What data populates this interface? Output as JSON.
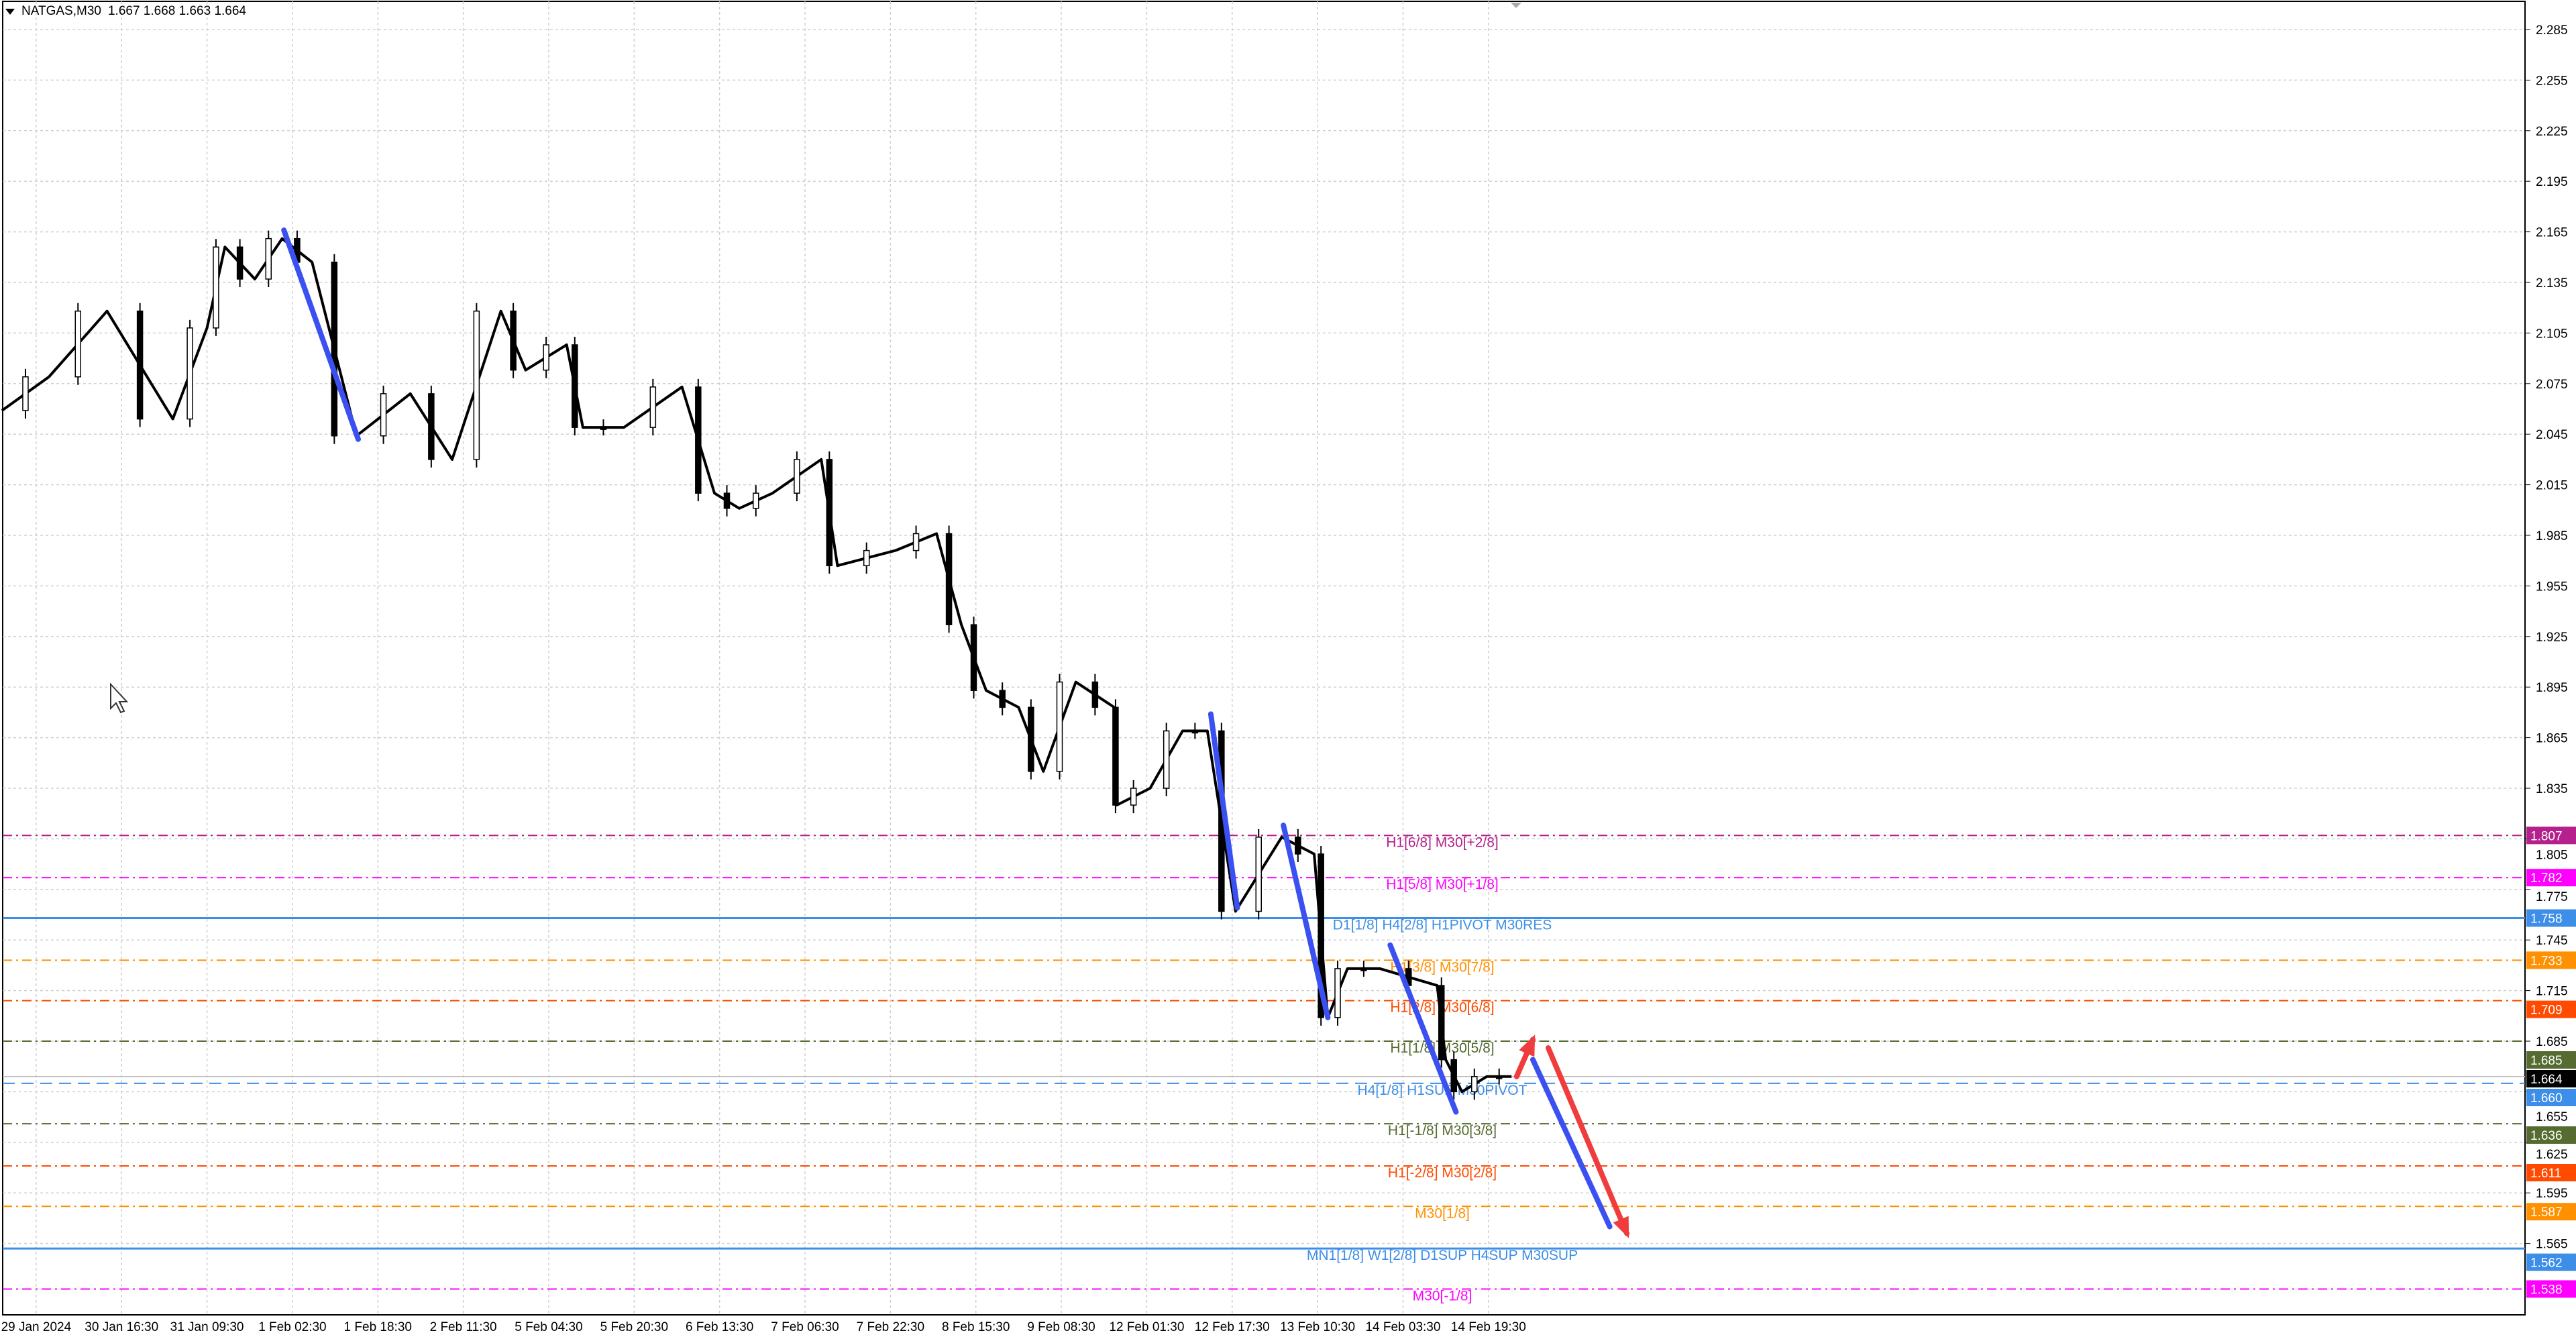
{
  "header": {
    "symbol": "NATGAS,M30",
    "ohlc": "1.667 1.668 1.663 1.664"
  },
  "chart_data": {
    "type": "candlestick",
    "price_ticks": [
      "2.285",
      "2.255",
      "2.225",
      "2.195",
      "2.165",
      "2.135",
      "2.105",
      "2.075",
      "2.045",
      "2.015",
      "1.985",
      "1.955",
      "1.925",
      "1.895",
      "1.865",
      "1.835",
      "1.805",
      "1.775",
      "1.745",
      "1.715",
      "1.685",
      "1.655",
      "1.625",
      "1.595",
      "1.565"
    ],
    "time_labels": [
      "29 Jan 2024",
      "30 Jan 16:30",
      "31 Jan 09:30",
      "1 Feb 02:30",
      "1 Feb 18:30",
      "2 Feb 11:30",
      "5 Feb 04:30",
      "5 Feb 20:30",
      "6 Feb 13:30",
      "7 Feb 06:30",
      "7 Feb 22:30",
      "8 Feb 15:30",
      "9 Feb 08:30",
      "12 Feb 01:30",
      "12 Feb 17:30",
      "13 Feb 10:30",
      "14 Feb 03:30",
      "14 Feb 19:30"
    ],
    "current_price": {
      "value": "1.664",
      "color": "#000000"
    },
    "price_path": [
      [
        -0.4,
        2.059
      ],
      [
        0.15,
        2.079
      ],
      [
        0.83,
        2.118
      ],
      [
        1.6,
        2.054
      ],
      [
        2.0,
        2.108
      ],
      [
        2.21,
        2.156
      ],
      [
        2.56,
        2.137
      ],
      [
        2.88,
        2.161
      ],
      [
        3.23,
        2.147
      ],
      [
        3.75,
        2.044
      ],
      [
        4.38,
        2.069
      ],
      [
        4.87,
        2.03
      ],
      [
        5.44,
        2.118
      ],
      [
        5.73,
        2.083
      ],
      [
        6.21,
        2.098
      ],
      [
        6.4,
        2.049
      ],
      [
        6.88,
        2.049
      ],
      [
        7.56,
        2.073
      ],
      [
        7.94,
        2.01
      ],
      [
        8.23,
        2.001
      ],
      [
        8.62,
        2.01
      ],
      [
        9.19,
        2.03
      ],
      [
        9.38,
        1.967
      ],
      [
        10.06,
        1.976
      ],
      [
        10.54,
        1.986
      ],
      [
        10.83,
        1.932
      ],
      [
        11.12,
        1.893
      ],
      [
        11.5,
        1.883
      ],
      [
        11.79,
        1.845
      ],
      [
        12.17,
        1.898
      ],
      [
        12.62,
        1.883
      ],
      [
        12.65,
        1.825
      ],
      [
        13.04,
        1.835
      ],
      [
        13.42,
        1.869
      ],
      [
        13.71,
        1.869
      ],
      [
        14.04,
        1.762
      ],
      [
        14.58,
        1.806
      ],
      [
        14.96,
        1.796
      ],
      [
        15.12,
        1.699
      ],
      [
        15.35,
        1.728
      ],
      [
        15.73,
        1.728
      ],
      [
        16.4,
        1.718
      ],
      [
        16.5,
        1.674
      ],
      [
        16.69,
        1.655
      ],
      [
        16.98,
        1.664
      ],
      [
        17.27,
        1.664
      ]
    ],
    "levels": [
      {
        "price": 1.807,
        "label": "H1[6/8] M30[+2/8]",
        "tag": "1.807",
        "color": "#b5208c",
        "dash": "dashdot"
      },
      {
        "price": 1.782,
        "label": "H1[5/8] M30[+1/8]",
        "tag": "1.782",
        "color": "#ff00ff",
        "dash": "dashdot"
      },
      {
        "price": 1.758,
        "label": "D1[1/8] H4[2/8] H1PIVOT M30RES",
        "tag": "1.758",
        "color": "#3d8ee8",
        "dash": "solid"
      },
      {
        "price": 1.733,
        "label": "H1[3/8] M30[7/8]",
        "tag": "1.733",
        "color": "#ff9000",
        "dash": "dashdot"
      },
      {
        "price": 1.709,
        "label": "H1[2/8] M30[6/8]",
        "tag": "1.709",
        "color": "#ff4a00",
        "dash": "dashdot"
      },
      {
        "price": 1.685,
        "label": "H1[1/8] M30[5/8]",
        "tag": "1.685",
        "color": "#556b2f",
        "dash": "dashdot"
      },
      {
        "price": 1.66,
        "label": "H4[1/8] H1SUP M30PIVOT",
        "tag": "1.660",
        "color": "#3d8ee8",
        "dash": "dash"
      },
      {
        "price": 1.636,
        "label": "H1[-1/8] M30[3/8]",
        "tag": "1.636",
        "color": "#556b2f",
        "dash": "dashdot"
      },
      {
        "price": 1.611,
        "label": "H1[-2/8] M30[2/8]",
        "tag": "1.611",
        "color": "#ff4a00",
        "dash": "dashdot"
      },
      {
        "price": 1.587,
        "label": "M30[1/8]",
        "tag": "1.587",
        "color": "#ff9000",
        "dash": "dashdot"
      },
      {
        "price": 1.562,
        "label": "MN1[1/8] W1[2/8] D1SUP H4SUP M30SUP",
        "tag": "1.562",
        "color": "#3d8ee8",
        "dash": "solid"
      },
      {
        "price": 1.538,
        "label": "M30[-1/8]",
        "tag": "1.538",
        "color": "#ff00ff",
        "dash": "dashdot"
      }
    ],
    "trend_lines": [
      {
        "color": "#3b50f0",
        "from": [
          2.9,
          2.166
        ],
        "to": [
          3.77,
          2.042
        ]
      },
      {
        "color": "#3b50f0",
        "from": [
          13.75,
          1.879
        ],
        "to": [
          14.06,
          1.764
        ]
      },
      {
        "color": "#3b50f0",
        "from": [
          14.6,
          1.813
        ],
        "to": [
          15.12,
          1.699
        ]
      },
      {
        "color": "#3b50f0",
        "from": [
          15.85,
          1.742
        ],
        "to": [
          16.62,
          1.643
        ]
      },
      {
        "color": "#3b50f0",
        "from": [
          17.52,
          1.674
        ],
        "to": [
          18.42,
          1.575
        ]
      }
    ],
    "arrows": [
      {
        "color": "#f03c3c",
        "from": [
          17.33,
          1.664
        ],
        "to": [
          17.52,
          1.686
        ]
      },
      {
        "color": "#f03c3c",
        "from": [
          17.7,
          1.681
        ],
        "to": [
          18.62,
          1.571
        ]
      }
    ],
    "grid": true
  }
}
